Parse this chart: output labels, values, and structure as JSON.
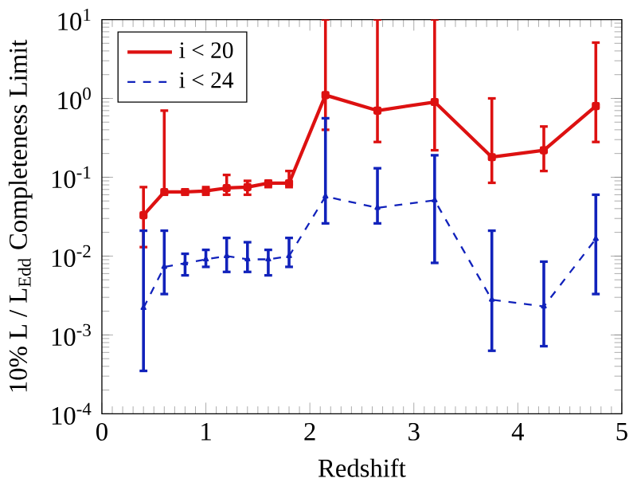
{
  "chart_data": {
    "type": "line",
    "xlabel": "Redshift",
    "ylabel": "10% L / L$_{Edd}$ Completeness Limit",
    "x": [
      0.4,
      0.6,
      0.8,
      1.0,
      1.2,
      1.4,
      1.6,
      1.8,
      2.15,
      2.65,
      3.2,
      3.75,
      4.25,
      4.75
    ],
    "series": [
      {
        "name": "i < 20",
        "color": "#dd1111",
        "line_style": "solid",
        "marker": "square",
        "values": [
          0.033,
          0.065,
          0.065,
          0.067,
          0.073,
          0.075,
          0.084,
          0.084,
          1.1,
          0.7,
          0.9,
          0.18,
          0.22,
          0.8
        ],
        "errors": [
          [
            0.013,
            0.075
          ],
          [
            0.06,
            0.7
          ],
          [
            0.06,
            0.07
          ],
          [
            0.06,
            0.075
          ],
          [
            0.06,
            0.107
          ],
          [
            0.06,
            0.09
          ],
          [
            0.075,
            0.09
          ],
          [
            0.075,
            0.12
          ],
          [
            0.4,
            10
          ],
          [
            0.28,
            10
          ],
          [
            0.22,
            10
          ],
          [
            0.085,
            1.0
          ],
          [
            0.12,
            0.44
          ],
          [
            0.28,
            5.1
          ]
        ]
      },
      {
        "name": "i < 24",
        "color": "#1122bb",
        "line_style": "dashed",
        "marker": "triangle",
        "values": [
          0.0022,
          0.0073,
          0.0081,
          0.0091,
          0.01,
          0.0091,
          0.0091,
          0.01,
          0.057,
          0.041,
          0.051,
          0.0028,
          0.0023,
          0.0165
        ],
        "errors": [
          [
            0.00035,
            0.021
          ],
          [
            0.0033,
            0.021
          ],
          [
            0.0057,
            0.0107
          ],
          [
            0.0073,
            0.012
          ],
          [
            0.0063,
            0.017
          ],
          [
            0.0063,
            0.015
          ],
          [
            0.0057,
            0.012
          ],
          [
            0.0073,
            0.017
          ],
          [
            0.026,
            0.56
          ],
          [
            0.026,
            0.13
          ],
          [
            0.0082,
            0.19
          ],
          [
            0.00063,
            0.021
          ],
          [
            0.00072,
            0.0085
          ],
          [
            0.0033,
            0.06
          ]
        ]
      }
    ],
    "log": "y",
    "xlim": [
      0,
      5
    ],
    "ylim": [
      0.0001,
      10
    ],
    "xticks": [
      0,
      1,
      2,
      3,
      4,
      5
    ],
    "yticks": [
      {
        "value": 0.0001,
        "label": "10$^{-4}$"
      },
      {
        "value": 0.001,
        "label": "10$^{-3}$"
      },
      {
        "value": 0.01,
        "label": "10$^{-2}$"
      },
      {
        "value": 0.1,
        "label": "10$^{-1}$"
      },
      {
        "value": 1,
        "label": "10$^{0}$"
      },
      {
        "value": 10,
        "label": "10$^{1}$"
      }
    ],
    "legend": "top left"
  }
}
